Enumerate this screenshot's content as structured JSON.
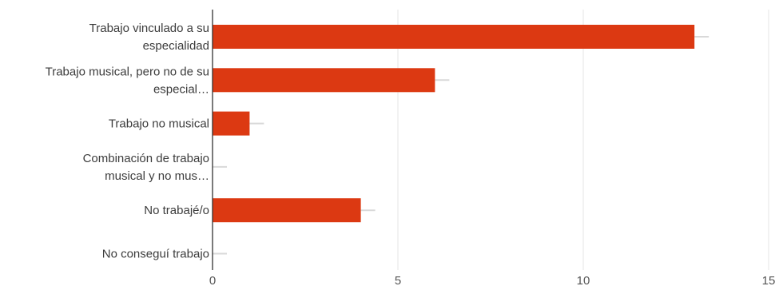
{
  "chart_data": {
    "type": "bar",
    "orientation": "horizontal",
    "categories": [
      [
        "Trabajo vinculado a su",
        "especialidad"
      ],
      [
        "Trabajo musical, pero no de su",
        "especial…"
      ],
      [
        "Trabajo no musical"
      ],
      [
        "Combinación de trabajo",
        "musical y no mus…"
      ],
      [
        "No trabajé/o"
      ],
      [
        "No conseguí trabajo"
      ]
    ],
    "values": [
      13,
      6,
      1,
      0,
      4,
      0
    ],
    "xlim": [
      0,
      15
    ],
    "xticks": [
      "0",
      "5",
      "10",
      "15"
    ],
    "grid": true,
    "legend": "none",
    "colors": {
      "bar": "#dc3912",
      "grid": "#e6e6e6",
      "axis": "#333333",
      "shadow": "#d9d9d9"
    }
  }
}
